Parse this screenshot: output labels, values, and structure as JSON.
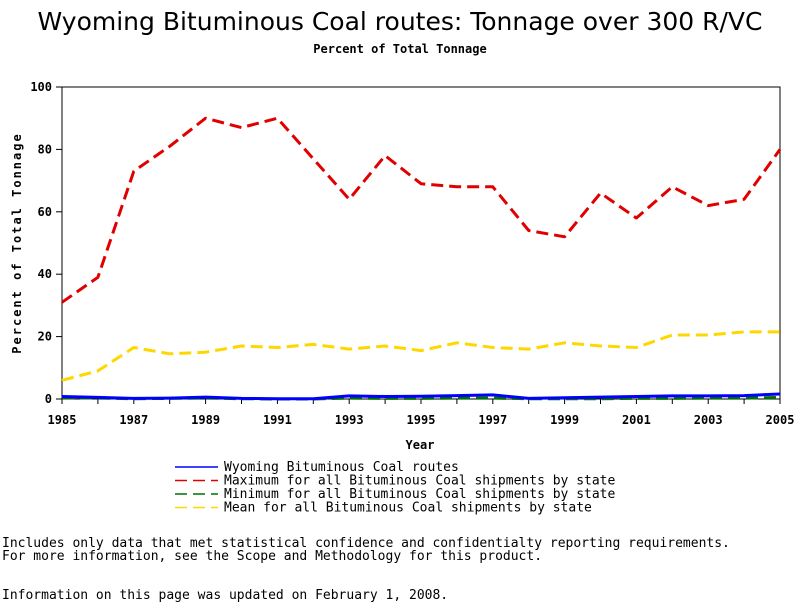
{
  "chart_data": {
    "type": "line",
    "title": "Wyoming Bituminous Coal routes: Tonnage over 300 R/VC",
    "subtitle": "Percent of Total Tonnage",
    "xlabel": "Year",
    "ylabel": "Percent of Total Tonnage",
    "xlim": [
      1985,
      2005
    ],
    "ylim": [
      0,
      100
    ],
    "x_ticks": [
      "1985",
      "1987",
      "1989",
      "1991",
      "1993",
      "1995",
      "1997",
      "1999",
      "2001",
      "2003",
      "2005"
    ],
    "y_ticks": [
      "0",
      "20",
      "40",
      "60",
      "80",
      "100"
    ],
    "grid": false,
    "legend_position": "bottom",
    "x": [
      1985,
      1986,
      1987,
      1988,
      1989,
      1990,
      1991,
      1992,
      1993,
      1994,
      1995,
      1996,
      1997,
      1998,
      1999,
      2000,
      2001,
      2002,
      2003,
      2004,
      2005
    ],
    "series": [
      {
        "name": "Wyoming Bituminous Coal routes",
        "color": "#0000ff",
        "style": "solid",
        "values": [
          0.8,
          0.5,
          0.2,
          0.3,
          0.6,
          0.2,
          0.1,
          0.1,
          1.0,
          0.8,
          0.9,
          1.1,
          1.3,
          0.2,
          0.4,
          0.6,
          0.8,
          1.0,
          1.0,
          1.1,
          1.6
        ]
      },
      {
        "name": "Maximum for all Bituminous Coal shipments by state",
        "color": "#e00000",
        "style": "dashed",
        "values": [
          31,
          39,
          73,
          81,
          90,
          87,
          90,
          77,
          64,
          78,
          69,
          68,
          68,
          54,
          52,
          66,
          58,
          68,
          62,
          64,
          80
        ]
      },
      {
        "name": "Minimum for all Bituminous Coal shipments by state",
        "color": "#007000",
        "style": "dashed",
        "values": [
          0.4,
          0.3,
          0.1,
          0.2,
          0.3,
          0.1,
          0.0,
          0.0,
          0.3,
          0.2,
          0.2,
          0.3,
          0.3,
          0.1,
          0.1,
          0.1,
          0.2,
          0.2,
          0.3,
          0.3,
          0.5
        ]
      },
      {
        "name": "Mean for all Bituminous Coal shipments by state",
        "color": "#ffd700",
        "style": "dashed",
        "values": [
          6,
          9,
          16.5,
          14.5,
          15,
          17,
          16.5,
          17.5,
          16,
          17,
          15.5,
          18,
          16.5,
          16,
          18,
          17,
          16.5,
          20.5,
          20.5,
          21.5,
          21.5
        ]
      }
    ]
  },
  "footer": {
    "note_line1": "Includes only data that met statistical confidence and confidentialty reporting requirements.",
    "note_line2": "For more information, see the Scope and Methodology for this product.",
    "updated": "Information on this page was updated on February 1, 2008."
  }
}
